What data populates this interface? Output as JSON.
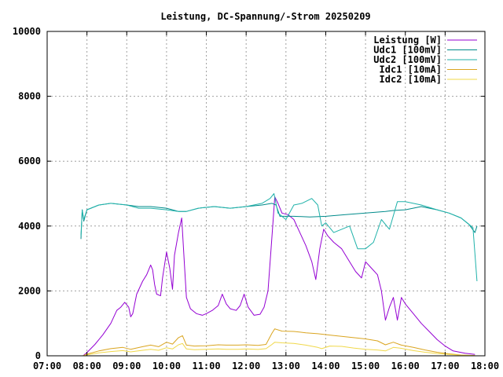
{
  "chart_data": {
    "type": "line",
    "title": "Leistung, DC-Spannung/-Strom 20250209",
    "xlabel": "",
    "ylabel": "",
    "x_unit": "hours",
    "xlim": [
      7,
      18
    ],
    "ylim": [
      0,
      10000
    ],
    "x_ticks": [
      {
        "v": 7,
        "label": "07:00"
      },
      {
        "v": 8,
        "label": "08:00"
      },
      {
        "v": 9,
        "label": "09:00"
      },
      {
        "v": 10,
        "label": "10:00"
      },
      {
        "v": 11,
        "label": "11:00"
      },
      {
        "v": 12,
        "label": "12:00"
      },
      {
        "v": 13,
        "label": "13:00"
      },
      {
        "v": 14,
        "label": "14:00"
      },
      {
        "v": 15,
        "label": "15:00"
      },
      {
        "v": 16,
        "label": "16:00"
      },
      {
        "v": 17,
        "label": "17:00"
      },
      {
        "v": 18,
        "label": "18:00"
      }
    ],
    "y_ticks": [
      {
        "v": 0,
        "label": "0"
      },
      {
        "v": 2000,
        "label": "2000"
      },
      {
        "v": 4000,
        "label": "4000"
      },
      {
        "v": 6000,
        "label": "6000"
      },
      {
        "v": 8000,
        "label": "8000"
      },
      {
        "v": 10000,
        "label": "10000"
      }
    ],
    "grid": true,
    "legend_position": "top-right",
    "series": [
      {
        "name": "Leistung [W]",
        "color": "#9400d3",
        "points": [
          [
            7.9,
            0
          ],
          [
            8.0,
            100
          ],
          [
            8.2,
            350
          ],
          [
            8.4,
            650
          ],
          [
            8.6,
            1000
          ],
          [
            8.75,
            1400
          ],
          [
            8.85,
            1500
          ],
          [
            8.95,
            1650
          ],
          [
            9.05,
            1500
          ],
          [
            9.1,
            1200
          ],
          [
            9.15,
            1300
          ],
          [
            9.25,
            1900
          ],
          [
            9.4,
            2300
          ],
          [
            9.5,
            2500
          ],
          [
            9.6,
            2800
          ],
          [
            9.65,
            2650
          ],
          [
            9.7,
            2200
          ],
          [
            9.75,
            1900
          ],
          [
            9.85,
            1850
          ],
          [
            9.9,
            2400
          ],
          [
            10.0,
            3200
          ],
          [
            10.08,
            2700
          ],
          [
            10.15,
            2050
          ],
          [
            10.2,
            3100
          ],
          [
            10.3,
            3800
          ],
          [
            10.38,
            4250
          ],
          [
            10.45,
            2800
          ],
          [
            10.5,
            1800
          ],
          [
            10.6,
            1450
          ],
          [
            10.75,
            1300
          ],
          [
            10.9,
            1250
          ],
          [
            11.0,
            1300
          ],
          [
            11.15,
            1400
          ],
          [
            11.3,
            1550
          ],
          [
            11.4,
            1900
          ],
          [
            11.5,
            1600
          ],
          [
            11.6,
            1450
          ],
          [
            11.75,
            1400
          ],
          [
            11.85,
            1550
          ],
          [
            11.95,
            1900
          ],
          [
            12.05,
            1500
          ],
          [
            12.2,
            1250
          ],
          [
            12.35,
            1280
          ],
          [
            12.45,
            1500
          ],
          [
            12.55,
            2000
          ],
          [
            12.62,
            3200
          ],
          [
            12.68,
            4200
          ],
          [
            12.72,
            4900
          ],
          [
            12.8,
            4700
          ],
          [
            12.9,
            4400
          ],
          [
            13.05,
            4350
          ],
          [
            13.2,
            4200
          ],
          [
            13.35,
            3800
          ],
          [
            13.5,
            3400
          ],
          [
            13.65,
            2900
          ],
          [
            13.75,
            2350
          ],
          [
            13.85,
            3300
          ],
          [
            13.95,
            3900
          ],
          [
            14.05,
            3700
          ],
          [
            14.2,
            3500
          ],
          [
            14.4,
            3300
          ],
          [
            14.6,
            2900
          ],
          [
            14.75,
            2600
          ],
          [
            14.9,
            2400
          ],
          [
            15.0,
            2900
          ],
          [
            15.15,
            2700
          ],
          [
            15.3,
            2500
          ],
          [
            15.4,
            2000
          ],
          [
            15.5,
            1100
          ],
          [
            15.6,
            1500
          ],
          [
            15.7,
            1800
          ],
          [
            15.8,
            1100
          ],
          [
            15.9,
            1800
          ],
          [
            16.0,
            1600
          ],
          [
            16.2,
            1300
          ],
          [
            16.4,
            1000
          ],
          [
            16.6,
            750
          ],
          [
            16.8,
            500
          ],
          [
            17.0,
            300
          ],
          [
            17.2,
            150
          ],
          [
            17.5,
            80
          ],
          [
            17.75,
            40
          ]
        ]
      },
      {
        "name": "Udc1 [100mV]",
        "color": "#008b8b",
        "points": [
          [
            7.85,
            3600
          ],
          [
            7.88,
            4500
          ],
          [
            7.92,
            4150
          ],
          [
            8.0,
            4500
          ],
          [
            8.3,
            4650
          ],
          [
            8.6,
            4700
          ],
          [
            9.0,
            4650
          ],
          [
            9.3,
            4600
          ],
          [
            9.6,
            4600
          ],
          [
            10.0,
            4550
          ],
          [
            10.3,
            4450
          ],
          [
            10.5,
            4450
          ],
          [
            10.8,
            4550
          ],
          [
            11.2,
            4600
          ],
          [
            11.6,
            4550
          ],
          [
            12.0,
            4600
          ],
          [
            12.4,
            4650
          ],
          [
            12.65,
            4700
          ],
          [
            12.75,
            4650
          ],
          [
            12.85,
            4300
          ],
          [
            13.2,
            4300
          ],
          [
            13.6,
            4280
          ],
          [
            14.0,
            4300
          ],
          [
            14.5,
            4350
          ],
          [
            15.0,
            4400
          ],
          [
            15.5,
            4450
          ],
          [
            15.7,
            4480
          ],
          [
            16.0,
            4500
          ],
          [
            16.4,
            4600
          ],
          [
            16.8,
            4500
          ],
          [
            17.1,
            4400
          ],
          [
            17.4,
            4250
          ],
          [
            17.6,
            4050
          ],
          [
            17.75,
            3800
          ],
          [
            17.8,
            4000
          ]
        ]
      },
      {
        "name": "Udc2 [100mV]",
        "color": "#20b2aa",
        "points": [
          [
            7.85,
            3700
          ],
          [
            7.88,
            4500
          ],
          [
            7.92,
            4200
          ],
          [
            8.0,
            4500
          ],
          [
            8.3,
            4650
          ],
          [
            8.6,
            4700
          ],
          [
            9.0,
            4650
          ],
          [
            9.3,
            4550
          ],
          [
            9.6,
            4550
          ],
          [
            10.0,
            4500
          ],
          [
            10.3,
            4450
          ],
          [
            10.5,
            4450
          ],
          [
            10.8,
            4550
          ],
          [
            11.2,
            4600
          ],
          [
            11.6,
            4550
          ],
          [
            12.0,
            4600
          ],
          [
            12.4,
            4700
          ],
          [
            12.6,
            4850
          ],
          [
            12.7,
            5000
          ],
          [
            12.8,
            4400
          ],
          [
            13.0,
            4200
          ],
          [
            13.2,
            4650
          ],
          [
            13.4,
            4700
          ],
          [
            13.65,
            4850
          ],
          [
            13.8,
            4650
          ],
          [
            13.9,
            4000
          ],
          [
            14.0,
            4100
          ],
          [
            14.2,
            3800
          ],
          [
            14.4,
            3900
          ],
          [
            14.6,
            4000
          ],
          [
            14.8,
            3300
          ],
          [
            15.0,
            3300
          ],
          [
            15.2,
            3500
          ],
          [
            15.4,
            4200
          ],
          [
            15.6,
            3900
          ],
          [
            15.8,
            4750
          ],
          [
            16.0,
            4750
          ],
          [
            16.4,
            4650
          ],
          [
            16.8,
            4500
          ],
          [
            17.1,
            4400
          ],
          [
            17.4,
            4250
          ],
          [
            17.6,
            4050
          ],
          [
            17.7,
            3950
          ],
          [
            17.8,
            2300
          ]
        ]
      },
      {
        "name": "Idc1 [10mA]",
        "color": "#daa520",
        "points": [
          [
            7.9,
            0
          ],
          [
            8.0,
            50
          ],
          [
            8.3,
            150
          ],
          [
            8.6,
            220
          ],
          [
            8.9,
            260
          ],
          [
            9.1,
            200
          ],
          [
            9.4,
            280
          ],
          [
            9.6,
            330
          ],
          [
            9.8,
            280
          ],
          [
            10.0,
            420
          ],
          [
            10.15,
            360
          ],
          [
            10.3,
            560
          ],
          [
            10.4,
            620
          ],
          [
            10.5,
            330
          ],
          [
            10.7,
            300
          ],
          [
            11.0,
            310
          ],
          [
            11.3,
            340
          ],
          [
            11.5,
            330
          ],
          [
            11.8,
            330
          ],
          [
            12.0,
            340
          ],
          [
            12.3,
            320
          ],
          [
            12.5,
            350
          ],
          [
            12.65,
            700
          ],
          [
            12.72,
            830
          ],
          [
            12.9,
            760
          ],
          [
            13.2,
            750
          ],
          [
            13.5,
            710
          ],
          [
            13.8,
            680
          ],
          [
            14.1,
            640
          ],
          [
            14.4,
            600
          ],
          [
            14.7,
            560
          ],
          [
            15.0,
            520
          ],
          [
            15.3,
            460
          ],
          [
            15.5,
            340
          ],
          [
            15.7,
            420
          ],
          [
            15.9,
            330
          ],
          [
            16.2,
            260
          ],
          [
            16.5,
            180
          ],
          [
            16.8,
            110
          ],
          [
            17.1,
            60
          ],
          [
            17.4,
            25
          ],
          [
            17.75,
            10
          ]
        ]
      },
      {
        "name": "Idc2 [10mA]",
        "color": "#f0d84a",
        "points": [
          [
            7.9,
            0
          ],
          [
            8.0,
            30
          ],
          [
            8.3,
            90
          ],
          [
            8.6,
            130
          ],
          [
            8.9,
            160
          ],
          [
            9.1,
            120
          ],
          [
            9.4,
            170
          ],
          [
            9.6,
            200
          ],
          [
            9.8,
            170
          ],
          [
            10.0,
            250
          ],
          [
            10.15,
            210
          ],
          [
            10.3,
            340
          ],
          [
            10.4,
            380
          ],
          [
            10.5,
            210
          ],
          [
            10.7,
            190
          ],
          [
            11.0,
            200
          ],
          [
            11.3,
            210
          ],
          [
            11.5,
            200
          ],
          [
            11.8,
            200
          ],
          [
            12.0,
            210
          ],
          [
            12.3,
            195
          ],
          [
            12.5,
            220
          ],
          [
            12.65,
            350
          ],
          [
            12.72,
            420
          ],
          [
            12.9,
            400
          ],
          [
            13.2,
            380
          ],
          [
            13.5,
            330
          ],
          [
            13.8,
            260
          ],
          [
            13.9,
            220
          ],
          [
            14.1,
            300
          ],
          [
            14.4,
            290
          ],
          [
            14.7,
            240
          ],
          [
            15.0,
            200
          ],
          [
            15.3,
            180
          ],
          [
            15.5,
            150
          ],
          [
            15.7,
            260
          ],
          [
            15.9,
            230
          ],
          [
            16.2,
            160
          ],
          [
            16.5,
            110
          ],
          [
            16.8,
            70
          ],
          [
            17.1,
            40
          ],
          [
            17.4,
            20
          ],
          [
            17.75,
            5
          ]
        ]
      }
    ]
  }
}
